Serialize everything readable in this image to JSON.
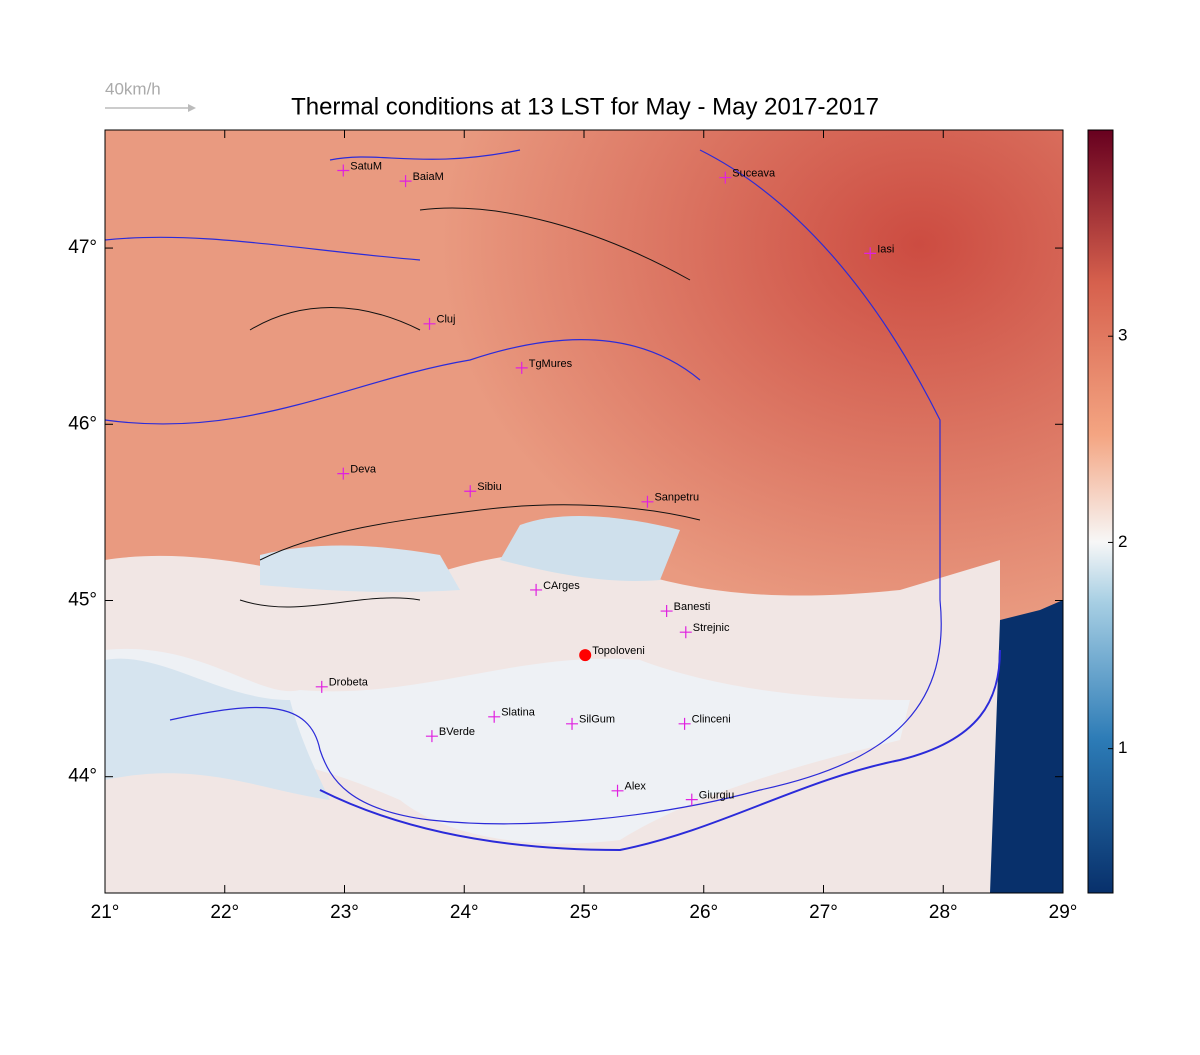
{
  "map": {
    "title": "Thermal conditions at 13 LST for May - May  2017-2017",
    "wind_legend": "40km/h",
    "xlim": [
      21,
      29
    ],
    "ylim": [
      43.34,
      47.67
    ],
    "xticks": [
      {
        "value": 21,
        "label": "21°"
      },
      {
        "value": 22,
        "label": "22°"
      },
      {
        "value": 23,
        "label": "23°"
      },
      {
        "value": 24,
        "label": "24°"
      },
      {
        "value": 25,
        "label": "25°"
      },
      {
        "value": 26,
        "label": "26°"
      },
      {
        "value": 27,
        "label": "27°"
      },
      {
        "value": 28,
        "label": "28°"
      },
      {
        "value": 29,
        "label": "29°"
      }
    ],
    "yticks": [
      {
        "value": 44,
        "label": "44°"
      },
      {
        "value": 45,
        "label": "45°"
      },
      {
        "value": 46,
        "label": "46°"
      },
      {
        "value": 47,
        "label": "47°"
      }
    ],
    "colorbar": {
      "lim": [
        0.3,
        4.0
      ],
      "ticks": [
        1,
        2,
        3
      ]
    },
    "cities": [
      {
        "name": "SatuM",
        "lon": 22.99,
        "lat": 47.44
      },
      {
        "name": "BaiaM",
        "lon": 23.51,
        "lat": 47.38
      },
      {
        "name": "Suceava",
        "lon": 26.18,
        "lat": 47.4
      },
      {
        "name": "Iasi",
        "lon": 27.39,
        "lat": 46.97
      },
      {
        "name": "Cluj",
        "lon": 23.71,
        "lat": 46.57
      },
      {
        "name": "TgMures",
        "lon": 24.48,
        "lat": 46.32
      },
      {
        "name": "Deva",
        "lon": 22.99,
        "lat": 45.72
      },
      {
        "name": "Sibiu",
        "lon": 24.05,
        "lat": 45.62
      },
      {
        "name": "Sanpetru",
        "lon": 25.53,
        "lat": 45.56
      },
      {
        "name": "CArges",
        "lon": 24.6,
        "lat": 45.06
      },
      {
        "name": "Banesti",
        "lon": 25.69,
        "lat": 44.94
      },
      {
        "name": "Strejnic",
        "lon": 25.85,
        "lat": 44.82
      },
      {
        "name": "Topoloveni",
        "lon": 25.01,
        "lat": 44.69,
        "highlight": true
      },
      {
        "name": "Drobeta",
        "lon": 22.81,
        "lat": 44.51
      },
      {
        "name": "Slatina",
        "lon": 24.25,
        "lat": 44.34
      },
      {
        "name": "SilGum",
        "lon": 24.9,
        "lat": 44.3
      },
      {
        "name": "Clinceni",
        "lon": 25.84,
        "lat": 44.3
      },
      {
        "name": "BVerde",
        "lon": 23.73,
        "lat": 44.23
      },
      {
        "name": "Alex",
        "lon": 25.28,
        "lat": 43.92
      },
      {
        "name": "Giurgiu",
        "lon": 25.9,
        "lat": 43.87
      }
    ]
  }
}
